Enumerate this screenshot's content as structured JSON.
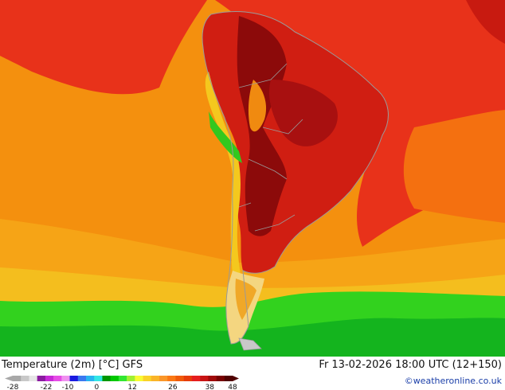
{
  "map": {
    "title": "Temperature (2m) [°C] GFS",
    "datetime": "Fr 13-02-2026 18:00 UTC (12+150)",
    "credit": "©weatheronline.co.uk"
  },
  "legend": {
    "ticks": [
      "-28",
      "-22",
      "-10",
      "0",
      "12",
      "26",
      "38",
      "48"
    ],
    "colors": [
      "#a8a8a8",
      "#c8c8c8",
      "#e6e6e6",
      "#8a1aa0",
      "#c828d8",
      "#e64ce6",
      "#f090f0",
      "#1a1ae0",
      "#3a78f0",
      "#28b4f0",
      "#32e6e6",
      "#009600",
      "#00c800",
      "#32e632",
      "#a0f032",
      "#fafa32",
      "#fad228",
      "#fab428",
      "#fa9628",
      "#fa7814",
      "#f05a0a",
      "#e63c0a",
      "#e61e1e",
      "#c81414",
      "#a00a0a",
      "#780000",
      "#500000"
    ],
    "colors_note": "order-ascending"
  },
  "palette": {
    "sea_warm": "#f48a0c",
    "sea_hot": "#e8281a",
    "land_hot": "#d01a10",
    "land_very_hot": "#8a0a0a",
    "cool": "#f4c81e",
    "cold": "#22c81e"
  }
}
